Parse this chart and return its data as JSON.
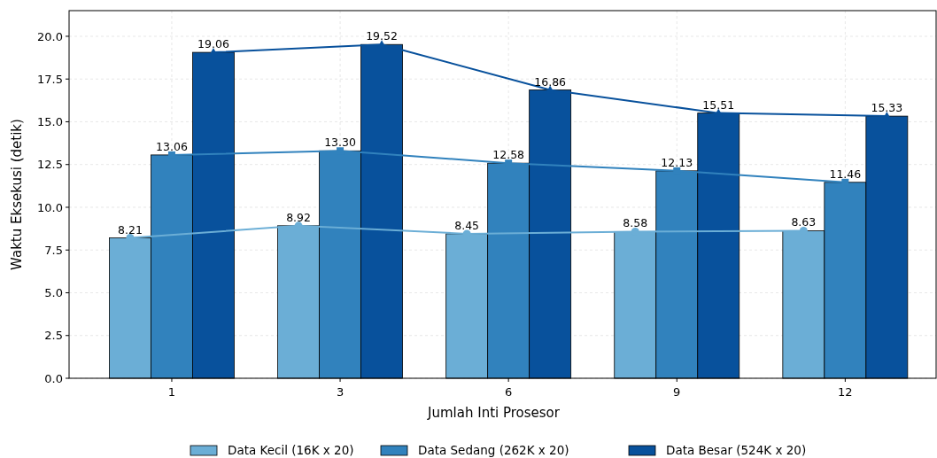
{
  "chart_data": {
    "type": "bar",
    "xlabel": "Jumlah Inti Prosesor",
    "ylabel": "Waktu Eksekusi (detik)",
    "categories": [
      "1",
      "3",
      "6",
      "9",
      "12"
    ],
    "series": [
      {
        "name": "Data Kecil (16K x 20)",
        "color": "#6baed6",
        "values": [
          8.21,
          8.92,
          8.45,
          8.58,
          8.63
        ],
        "value_labels": [
          "8.21",
          "8.92",
          "8.45",
          "8.58",
          "8.63"
        ]
      },
      {
        "name": "Data Sedang (262K x 20)",
        "color": "#3182bd",
        "values": [
          13.06,
          13.3,
          12.58,
          12.13,
          11.46
        ],
        "value_labels": [
          "13.06",
          "13.30",
          "12.58",
          "12.13",
          "11.46"
        ]
      },
      {
        "name": "Data Besar (524K x 20)",
        "color": "#08519c",
        "values": [
          19.06,
          19.52,
          16.86,
          15.51,
          15.33
        ],
        "value_labels": [
          "19.06",
          "19.52",
          "16.86",
          "15.51",
          "15.33"
        ]
      },
      {
        "type": "line",
        "color": "#6baed6",
        "marker": "circle",
        "values": [
          8.21,
          8.92,
          8.45,
          8.58,
          8.63
        ]
      },
      {
        "type": "line",
        "color": "#3182bd",
        "marker": "square",
        "values": [
          13.06,
          13.3,
          12.58,
          12.13,
          11.46
        ]
      },
      {
        "type": "line",
        "color": "#08519c",
        "marker": "triangle",
        "values": [
          19.06,
          19.52,
          16.86,
          15.51,
          15.33
        ]
      }
    ],
    "ylim": [
      0,
      21.5
    ],
    "yticks": [
      {
        "value": 0,
        "label": "0.0"
      },
      {
        "value": 2.5,
        "label": "2.5"
      },
      {
        "value": 5,
        "label": "5.0"
      },
      {
        "value": 7.5,
        "label": "7.5"
      },
      {
        "value": 10,
        "label": "10.0"
      },
      {
        "value": 12.5,
        "label": "12.5"
      },
      {
        "value": 15,
        "label": "15.0"
      },
      {
        "value": 17.5,
        "label": "17.5"
      },
      {
        "value": 20,
        "label": "20.0"
      }
    ],
    "grid": true,
    "legend": "bottom"
  }
}
